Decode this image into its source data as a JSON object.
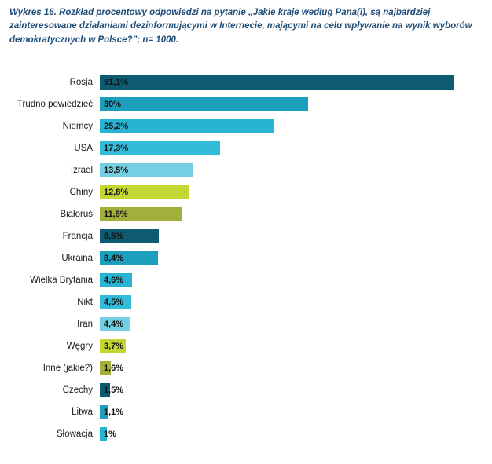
{
  "title": "Wykres 16. Rozkład procentowy odpowiedzi na pytanie „Jakie kraje według Pana(i), są najbardziej zainteresowane działaniami dezinformującymi w Internecie, mającymi na celu wpływanie na wynik wyborów demokratycznych w Polsce?”; n= 1000.",
  "chart_data": {
    "type": "bar",
    "orientation": "horizontal",
    "title": "Wykres 16. Rozkład procentowy odpowiedzi na pytanie „Jakie kraje według Pana(i), są najbardziej zainteresowane działaniami dezinformującymi w Internecie, mającymi na celu wpływanie na wynik wyborów demokratycznych w Polsce?”; n= 1000.",
    "n": 1000,
    "categories": [
      "Rosja",
      "Trudno powiedzieć",
      "Niemcy",
      "USA",
      "Izrael",
      "Chiny",
      "Białoruś",
      "Francja",
      "Ukraina",
      "Wielka Brytania",
      "Nikt",
      "Iran",
      "Węgry",
      "Inne (jakie?)",
      "Czechy",
      "Litwa",
      "Słowacja"
    ],
    "values": [
      51.1,
      30,
      25.2,
      17.3,
      13.5,
      12.8,
      11.8,
      8.5,
      8.4,
      4.6,
      4.5,
      4.4,
      3.7,
      1.6,
      1.5,
      1.1,
      1
    ],
    "value_labels": [
      "51,1%",
      "30%",
      "25,2%",
      "17,3%",
      "13,5%",
      "12,8%",
      "11,8%",
      "8,5%",
      "8,4%",
      "4,6%",
      "4,5%",
      "4,4%",
      "3,7%",
      "1,6%",
      "1,5%",
      "1,1%",
      "1%"
    ],
    "colors": [
      "#0d5a71",
      "#1b9fbd",
      "#27b4d2",
      "#33bcd9",
      "#74cfe2",
      "#c3d631",
      "#a2af3a",
      "#0d5a71",
      "#1b9fbd",
      "#27b4d2",
      "#33bcd9",
      "#74cfe2",
      "#c3d631",
      "#a2af3a",
      "#0d5a71",
      "#1b9fbd",
      "#27b4d2"
    ],
    "xlim": [
      0,
      55
    ],
    "grid": false,
    "legend": false,
    "xlabel": "",
    "ylabel": ""
  },
  "colors": {
    "title_text": "#1f4e79",
    "background": "#ffffff",
    "value_label_text": "#111111"
  }
}
